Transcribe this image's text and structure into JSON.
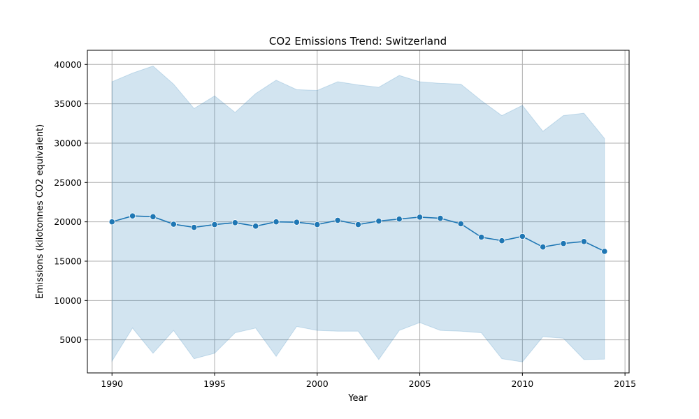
{
  "chart_data": {
    "type": "line",
    "title": "CO2 Emissions Trend: Switzerland",
    "xlabel": "Year",
    "ylabel": "Emissions (kilotonnes CO2 equivalent)",
    "xlim": [
      1988.8,
      2015.2
    ],
    "ylim": [
      800,
      41800
    ],
    "xticks": [
      1990,
      1995,
      2000,
      2005,
      2010,
      2015
    ],
    "yticks": [
      5000,
      10000,
      15000,
      20000,
      25000,
      30000,
      35000,
      40000
    ],
    "grid": true,
    "x": [
      1990,
      1991,
      1992,
      1993,
      1994,
      1995,
      1996,
      1997,
      1998,
      1999,
      2000,
      2001,
      2002,
      2003,
      2004,
      2005,
      2006,
      2007,
      2008,
      2009,
      2010,
      2011,
      2012,
      2013,
      2014
    ],
    "series": [
      {
        "values": [
          20000,
          20750,
          20650,
          19700,
          19300,
          19650,
          19900,
          19450,
          20000,
          19950,
          19650,
          20200,
          19650,
          20100,
          20350,
          20600,
          20450,
          19750,
          18050,
          17600,
          18150,
          16800,
          17250,
          17500,
          16250
        ],
        "lower": [
          2300,
          6500,
          3300,
          6200,
          2600,
          3300,
          5900,
          6500,
          2900,
          6700,
          6200,
          6100,
          6100,
          2500,
          6200,
          7200,
          6200,
          6100,
          5900,
          2600,
          2200,
          5400,
          5200,
          2500,
          2550
        ],
        "upper": [
          37800,
          38900,
          39800,
          37500,
          34400,
          36000,
          33900,
          36300,
          38000,
          36800,
          36700,
          37800,
          37400,
          37100,
          38600,
          37800,
          37600,
          37500,
          35400,
          33500,
          34800,
          31500,
          33500,
          33800,
          30600
        ]
      }
    ],
    "colors": {
      "line": "#1f77b4",
      "band": "#1f77b4",
      "grid": "#b0b0b0"
    }
  }
}
